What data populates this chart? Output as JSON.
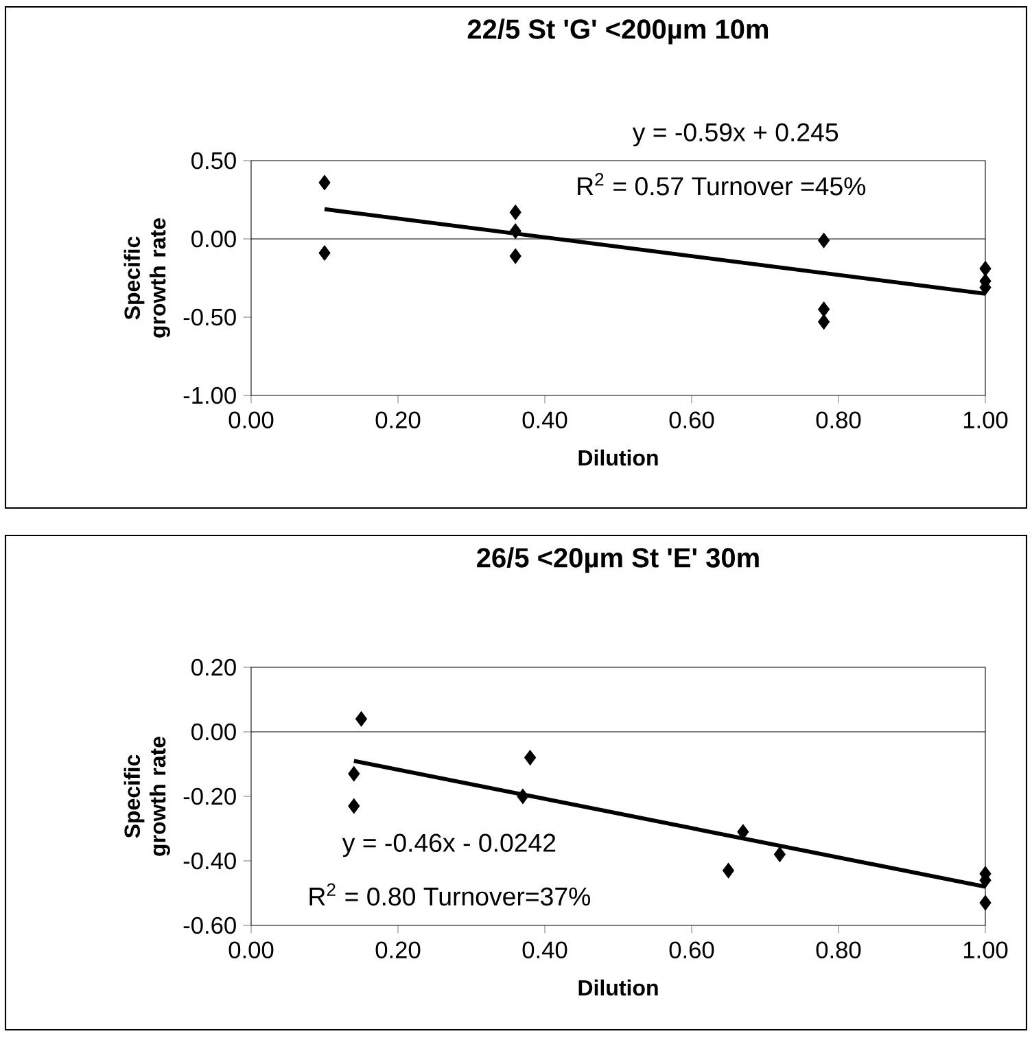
{
  "chart_data": [
    {
      "type": "scatter",
      "title": "22/5 St 'G' <200µm 10m",
      "xlabel": "Dilution",
      "ylabel": "Specific growth rate",
      "annotations": [
        "y = -0.59x + 0.245",
        "R$^{2}$ = 0.57 Turnover =45%"
      ],
      "xlim": [
        0,
        1
      ],
      "ylim": [
        -1,
        0.5
      ],
      "xticks": [
        {
          "value": 0,
          "label": "0.00"
        },
        {
          "value": 0.2,
          "label": "0.20"
        },
        {
          "value": 0.4,
          "label": "0.40"
        },
        {
          "value": 0.6,
          "label": "0.60"
        },
        {
          "value": 0.8,
          "label": "0.80"
        },
        {
          "value": 1,
          "label": "1.00"
        }
      ],
      "yticks": [
        {
          "value": -1,
          "label": "-1.00"
        },
        {
          "value": -0.5,
          "label": "-0.50"
        },
        {
          "value": 0,
          "label": "0.00"
        },
        {
          "value": 0.5,
          "label": "0.50"
        }
      ],
      "grid": false,
      "ref_lines": [
        {
          "axis": "y",
          "value": 0
        }
      ],
      "series": [
        {
          "type": "scatter",
          "marker": "diamond",
          "color": "#000000",
          "x": [
            0.1,
            0.1,
            0.36,
            0.36,
            0.36,
            0.78,
            0.78,
            0.78,
            1.0,
            1.0,
            1.0
          ],
          "values": [
            0.36,
            -0.09,
            0.17,
            0.05,
            -0.11,
            -0.01,
            -0.45,
            -0.53,
            -0.19,
            -0.27,
            -0.31
          ]
        },
        {
          "type": "line",
          "color": "#000000",
          "x": [
            0.1,
            1.0
          ],
          "values": [
            0.19,
            -0.35
          ]
        }
      ]
    },
    {
      "type": "scatter",
      "title": "26/5 <20µm St 'E' 30m",
      "xlabel": "Dilution",
      "ylabel": "Specific growth rate",
      "annotations": [
        "y = -0.46x - 0.0242",
        "R$^{2}$ = 0.80 Turnover=37%"
      ],
      "xlim": [
        0,
        1
      ],
      "ylim": [
        -0.6,
        0.2
      ],
      "xticks": [
        {
          "value": 0,
          "label": "0.00"
        },
        {
          "value": 0.2,
          "label": "0.20"
        },
        {
          "value": 0.4,
          "label": "0.40"
        },
        {
          "value": 0.6,
          "label": "0.60"
        },
        {
          "value": 0.8,
          "label": "0.80"
        },
        {
          "value": 1,
          "label": "1.00"
        }
      ],
      "yticks": [
        {
          "value": -0.6,
          "label": "-0.60"
        },
        {
          "value": -0.4,
          "label": "-0.40"
        },
        {
          "value": -0.2,
          "label": "-0.20"
        },
        {
          "value": 0,
          "label": "0.00"
        },
        {
          "value": 0.2,
          "label": "0.20"
        }
      ],
      "grid": false,
      "ref_lines": [
        {
          "axis": "y",
          "value": 0
        }
      ],
      "series": [
        {
          "type": "scatter",
          "marker": "diamond",
          "color": "#000000",
          "x": [
            0.15,
            0.14,
            0.14,
            0.38,
            0.37,
            0.65,
            0.67,
            0.72,
            1.0,
            1.0,
            1.0
          ],
          "values": [
            0.04,
            -0.13,
            -0.23,
            -0.08,
            -0.2,
            -0.43,
            -0.31,
            -0.38,
            -0.44,
            -0.46,
            -0.53
          ]
        },
        {
          "type": "line",
          "color": "#000000",
          "x": [
            0.14,
            1.0
          ],
          "values": [
            -0.09,
            -0.48
          ]
        }
      ]
    }
  ]
}
